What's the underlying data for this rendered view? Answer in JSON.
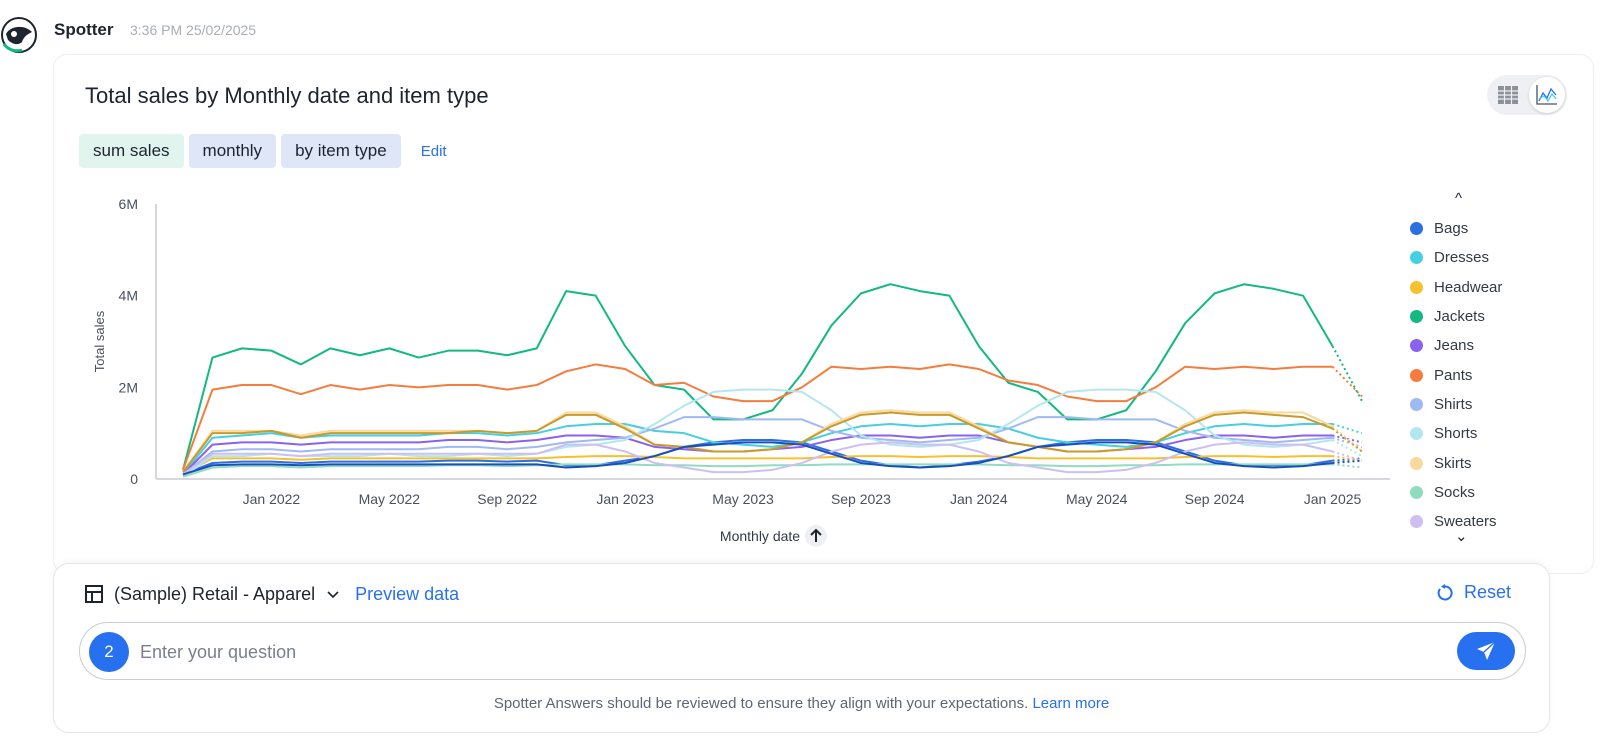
{
  "header": {
    "name": "Spotter",
    "timestamp": "3:36 PM 25/02/2025"
  },
  "answer": {
    "title": "Total sales by Monthly date and item type",
    "chips": [
      "sum sales",
      "monthly",
      "by item type"
    ],
    "edit_label": "Edit"
  },
  "chart_data": {
    "type": "line",
    "title": "",
    "xlabel": "Monthly date",
    "ylabel": "Total sales",
    "ylim": [
      0,
      6000000
    ],
    "yticks": [
      "0",
      "2M",
      "4M",
      "6M"
    ],
    "xticks": [
      "Jan 2022",
      "May 2022",
      "Sep 2022",
      "Jan 2023",
      "May 2023",
      "Sep 2023",
      "Jan 2024",
      "May 2024",
      "Sep 2024",
      "Jan 2025"
    ],
    "x": [
      "Oct 2021",
      "Nov 2021",
      "Dec 2021",
      "Jan 2022",
      "Feb 2022",
      "Mar 2022",
      "Apr 2022",
      "May 2022",
      "Jun 2022",
      "Jul 2022",
      "Aug 2022",
      "Sep 2022",
      "Oct 2022",
      "Nov 2022",
      "Dec 2022",
      "Jan 2023",
      "Feb 2023",
      "Mar 2023",
      "Apr 2023",
      "May 2023",
      "Jun 2023",
      "Jul 2023",
      "Aug 2023",
      "Sep 2023",
      "Oct 2023",
      "Nov 2023",
      "Dec 2023",
      "Jan 2024",
      "Feb 2024",
      "Mar 2024",
      "Apr 2024",
      "May 2024",
      "Jun 2024",
      "Jul 2024",
      "Aug 2024",
      "Sep 2024",
      "Oct 2024",
      "Nov 2024",
      "Dec 2024",
      "Jan 2025",
      "Feb 2025"
    ],
    "last_point_dotted": true,
    "series": [
      {
        "name": "Bags",
        "color": "#2c6fe0",
        "values": [
          0.1,
          0.35,
          0.38,
          0.38,
          0.35,
          0.38,
          0.38,
          0.38,
          0.38,
          0.4,
          0.4,
          0.38,
          0.4,
          0.3,
          0.3,
          0.4,
          0.5,
          0.7,
          0.8,
          0.85,
          0.85,
          0.8,
          0.6,
          0.4,
          0.3,
          0.25,
          0.3,
          0.38,
          0.5,
          0.7,
          0.8,
          0.85,
          0.85,
          0.8,
          0.6,
          0.4,
          0.3,
          0.3,
          0.3,
          0.4,
          0.45
        ]
      },
      {
        "name": "Dresses",
        "color": "#45cfe0",
        "values": [
          0.1,
          0.9,
          0.95,
          1.0,
          0.9,
          0.95,
          0.95,
          0.95,
          0.95,
          1.0,
          1.0,
          0.95,
          1.0,
          1.15,
          1.2,
          1.2,
          1.05,
          1.0,
          0.8,
          0.75,
          0.7,
          0.8,
          1.0,
          1.15,
          1.2,
          1.15,
          1.2,
          1.2,
          1.1,
          0.9,
          0.8,
          0.75,
          0.7,
          0.8,
          1.0,
          1.15,
          1.2,
          1.15,
          1.2,
          1.2,
          1.0
        ]
      },
      {
        "name": "Headwear",
        "color": "#f7c12e",
        "values": [
          0.1,
          0.45,
          0.45,
          0.45,
          0.42,
          0.45,
          0.45,
          0.45,
          0.45,
          0.45,
          0.45,
          0.45,
          0.45,
          0.48,
          0.5,
          0.5,
          0.48,
          0.45,
          0.45,
          0.45,
          0.45,
          0.45,
          0.48,
          0.5,
          0.5,
          0.48,
          0.5,
          0.5,
          0.48,
          0.45,
          0.45,
          0.45,
          0.45,
          0.45,
          0.48,
          0.5,
          0.5,
          0.48,
          0.5,
          0.5,
          0.4
        ]
      },
      {
        "name": "Jackets",
        "color": "#13b981",
        "values": [
          0.2,
          2.65,
          2.85,
          2.8,
          2.5,
          2.85,
          2.7,
          2.85,
          2.65,
          2.8,
          2.8,
          2.7,
          2.85,
          4.1,
          4.0,
          2.9,
          2.05,
          1.95,
          1.3,
          1.3,
          1.5,
          2.3,
          3.35,
          4.05,
          4.25,
          4.1,
          4.0,
          2.9,
          2.1,
          1.9,
          1.3,
          1.3,
          1.5,
          2.35,
          3.4,
          4.05,
          4.25,
          4.15,
          4.0,
          2.9,
          1.7
        ]
      },
      {
        "name": "Jeans",
        "color": "#8a62f0",
        "values": [
          0.1,
          0.75,
          0.8,
          0.8,
          0.75,
          0.8,
          0.8,
          0.8,
          0.8,
          0.85,
          0.85,
          0.8,
          0.85,
          0.95,
          0.95,
          0.9,
          0.7,
          0.65,
          0.6,
          0.6,
          0.65,
          0.7,
          0.85,
          0.95,
          0.95,
          0.9,
          0.95,
          0.95,
          0.8,
          0.7,
          0.6,
          0.6,
          0.65,
          0.7,
          0.85,
          0.95,
          0.95,
          0.9,
          0.95,
          0.95,
          0.8
        ]
      },
      {
        "name": "Pants",
        "color": "#f47d3d",
        "values": [
          0.2,
          1.95,
          2.05,
          2.05,
          1.85,
          2.05,
          1.95,
          2.05,
          2.0,
          2.05,
          2.05,
          1.95,
          2.05,
          2.35,
          2.5,
          2.4,
          2.05,
          2.1,
          1.8,
          1.7,
          1.7,
          2.0,
          2.45,
          2.4,
          2.45,
          2.4,
          2.5,
          2.4,
          2.15,
          2.05,
          1.8,
          1.7,
          1.7,
          2.0,
          2.45,
          2.4,
          2.45,
          2.4,
          2.45,
          2.45,
          1.8
        ]
      },
      {
        "name": "Shirts",
        "color": "#9fb9f3",
        "values": [
          0.1,
          0.6,
          0.65,
          0.65,
          0.6,
          0.65,
          0.65,
          0.65,
          0.65,
          0.7,
          0.7,
          0.65,
          0.7,
          0.8,
          0.85,
          0.9,
          1.1,
          1.35,
          1.35,
          1.3,
          1.3,
          1.3,
          1.05,
          0.9,
          0.85,
          0.8,
          0.85,
          0.9,
          1.1,
          1.35,
          1.35,
          1.3,
          1.3,
          1.3,
          1.05,
          0.9,
          0.85,
          0.8,
          0.85,
          0.9,
          0.7
        ]
      },
      {
        "name": "Shorts",
        "color": "#b3e7ef",
        "values": [
          0.05,
          0.5,
          0.5,
          0.55,
          0.5,
          0.5,
          0.5,
          0.55,
          0.5,
          0.5,
          0.55,
          0.5,
          0.55,
          0.7,
          0.75,
          0.85,
          1.2,
          1.6,
          1.9,
          1.95,
          1.95,
          1.9,
          1.5,
          0.95,
          0.75,
          0.7,
          0.75,
          0.85,
          1.2,
          1.6,
          1.9,
          1.95,
          1.95,
          1.9,
          1.5,
          0.95,
          0.75,
          0.7,
          0.75,
          0.85,
          0.5
        ]
      },
      {
        "name": "Skirts",
        "color": "#fbd89b",
        "values": [
          0.15,
          1.05,
          1.05,
          1.05,
          0.95,
          1.05,
          1.05,
          1.05,
          1.05,
          1.05,
          1.05,
          1.0,
          1.05,
          1.45,
          1.45,
          1.15,
          0.75,
          0.7,
          0.6,
          0.6,
          0.65,
          0.8,
          1.2,
          1.45,
          1.5,
          1.45,
          1.45,
          1.15,
          0.8,
          0.7,
          0.6,
          0.6,
          0.65,
          0.8,
          1.2,
          1.45,
          1.5,
          1.45,
          1.45,
          1.15,
          0.6
        ]
      },
      {
        "name": "Socks",
        "color": "#8fdcc0",
        "values": [
          0.05,
          0.25,
          0.28,
          0.28,
          0.25,
          0.28,
          0.28,
          0.28,
          0.28,
          0.3,
          0.3,
          0.28,
          0.3,
          0.32,
          0.32,
          0.32,
          0.3,
          0.3,
          0.28,
          0.28,
          0.3,
          0.3,
          0.32,
          0.32,
          0.32,
          0.32,
          0.32,
          0.32,
          0.3,
          0.3,
          0.28,
          0.28,
          0.3,
          0.3,
          0.32,
          0.32,
          0.32,
          0.32,
          0.32,
          0.32,
          0.25
        ]
      },
      {
        "name": "Sweaters",
        "color": "#cdbff2",
        "values": [
          0.1,
          0.55,
          0.55,
          0.55,
          0.5,
          0.55,
          0.55,
          0.55,
          0.55,
          0.55,
          0.55,
          0.55,
          0.55,
          0.75,
          0.75,
          0.6,
          0.35,
          0.25,
          0.15,
          0.15,
          0.2,
          0.35,
          0.6,
          0.75,
          0.8,
          0.75,
          0.75,
          0.6,
          0.35,
          0.25,
          0.15,
          0.15,
          0.2,
          0.35,
          0.6,
          0.75,
          0.8,
          0.75,
          0.75,
          0.6,
          0.4
        ]
      },
      {
        "name": "",
        "color": "#c79a2c",
        "values": [
          0.15,
          1.0,
          1.0,
          1.05,
          0.9,
          1.0,
          1.0,
          1.0,
          1.0,
          1.0,
          1.05,
          1.0,
          1.05,
          1.4,
          1.4,
          1.1,
          0.75,
          0.7,
          0.6,
          0.6,
          0.65,
          0.8,
          1.15,
          1.4,
          1.45,
          1.4,
          1.4,
          1.1,
          0.8,
          0.7,
          0.6,
          0.6,
          0.65,
          0.8,
          1.15,
          1.4,
          1.45,
          1.4,
          1.35,
          1.1,
          0.6
        ]
      },
      {
        "name": "",
        "color": "#1a4fb8",
        "values": [
          0.1,
          0.3,
          0.32,
          0.32,
          0.3,
          0.32,
          0.32,
          0.32,
          0.32,
          0.32,
          0.32,
          0.32,
          0.32,
          0.25,
          0.28,
          0.35,
          0.5,
          0.7,
          0.75,
          0.8,
          0.8,
          0.75,
          0.55,
          0.35,
          0.28,
          0.25,
          0.28,
          0.35,
          0.5,
          0.7,
          0.75,
          0.8,
          0.8,
          0.75,
          0.55,
          0.35,
          0.28,
          0.25,
          0.28,
          0.35,
          0.4
        ]
      }
    ]
  },
  "legend": {
    "up_arrow": "^",
    "down_arrow": "⌄"
  },
  "query": {
    "datasource": "(Sample) Retail - Apparel",
    "preview_label": "Preview data",
    "reset_label": "Reset",
    "badge": "2",
    "placeholder": "Enter your question",
    "disclaimer": "Spotter Answers should be reviewed to ensure they align with your expectations.",
    "learn_more": "Learn more"
  },
  "icons": [
    "spotter-avatar-icon",
    "table-view-icon",
    "chart-view-icon",
    "datasource-table-icon",
    "chevron-down-icon",
    "reset-icon",
    "send-icon",
    "sort-arrow-icon"
  ]
}
